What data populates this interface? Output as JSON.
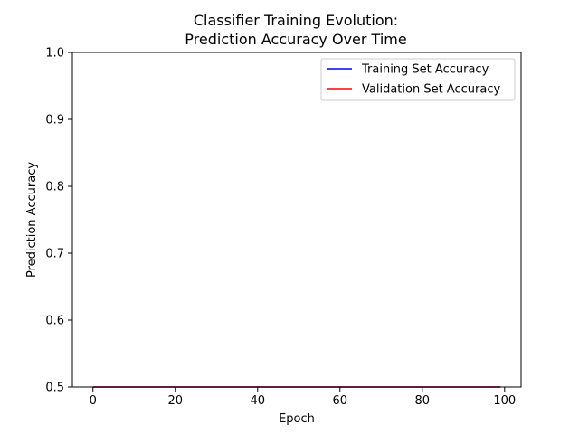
{
  "chart_data": {
    "type": "line",
    "title": [
      "Classifier Training Evolution:",
      "Prediction Accuracy Over Time"
    ],
    "xlabel": "Epoch",
    "ylabel": "Prediction Accuracy",
    "xlim": [
      -5,
      104
    ],
    "ylim": [
      0.5,
      1.0
    ],
    "xticks": [
      0,
      20,
      40,
      60,
      80,
      100
    ],
    "yticks": [
      0.5,
      0.6,
      0.7,
      0.8,
      0.9,
      1.0
    ],
    "grid": false,
    "legend": "top-right",
    "series": [
      {
        "name": "Training Set Accuracy",
        "color": "#0000ff",
        "x": [
          0,
          99
        ],
        "y": [
          0.5,
          0.5
        ]
      },
      {
        "name": "Validation Set Accuracy",
        "color": "#ff0000",
        "x": [
          0,
          99
        ],
        "y": [
          0.5,
          0.5
        ]
      }
    ]
  }
}
